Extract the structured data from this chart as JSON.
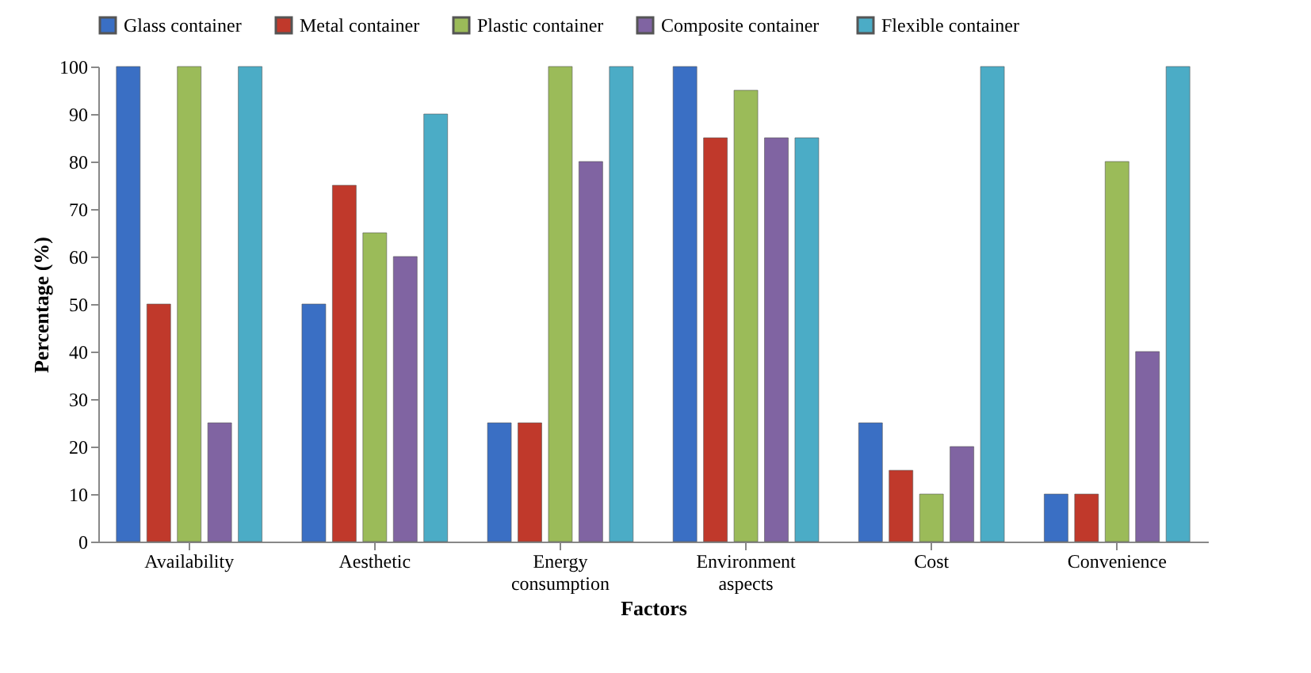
{
  "chart_data": {
    "type": "bar",
    "xlabel": "Factors",
    "ylabel": "Percentage (%)",
    "categories": [
      "Availability",
      "Aesthetic",
      "Energy consumption",
      "Environment aspects",
      "Cost",
      "Convenience"
    ],
    "series": [
      {
        "name": "Glass container",
        "color": "#3a6fc4",
        "values": [
          100,
          50,
          25,
          100,
          25,
          10
        ]
      },
      {
        "name": "Metal container",
        "color": "#c0392b",
        "values": [
          50,
          75,
          25,
          85,
          15,
          10
        ]
      },
      {
        "name": "Plastic container",
        "color": "#9bbb59",
        "values": [
          100,
          65,
          100,
          95,
          10,
          80
        ]
      },
      {
        "name": "Composite  container",
        "color": "#8064a2",
        "values": [
          25,
          60,
          80,
          85,
          20,
          40
        ]
      },
      {
        "name": "Flexible container",
        "color": "#4bacc6",
        "values": [
          100,
          90,
          100,
          85,
          100,
          100
        ]
      }
    ],
    "ylim": [
      0,
      100
    ],
    "yticks": [
      0,
      10,
      20,
      30,
      40,
      50,
      60,
      70,
      80,
      90,
      100
    ],
    "grid": false,
    "legend": "top"
  }
}
